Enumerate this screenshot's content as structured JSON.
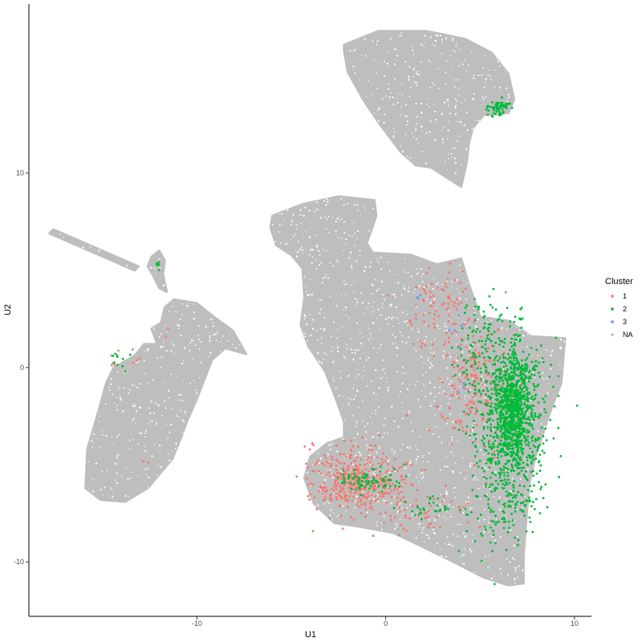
{
  "chart_data": {
    "type": "scatter",
    "title": "",
    "xlabel": "U1",
    "ylabel": "U2",
    "xlim": [
      -18.9,
      10.9
    ],
    "ylim": [
      -12.8,
      18.7
    ],
    "x_ticks": [
      -10,
      0,
      10
    ],
    "y_ticks": [
      -10,
      0,
      10
    ],
    "grid": false,
    "legend_position": "right",
    "legend": {
      "title": "Cluster",
      "entries": [
        {
          "label": "1",
          "color": "#F8766D"
        },
        {
          "label": "2",
          "color": "#00BA38"
        },
        {
          "label": "3",
          "color": "#619CFF"
        },
        {
          "label": "NA",
          "color": "#BEBEBE"
        }
      ]
    },
    "na_regions": [
      {
        "name": "top-island",
        "polygon": [
          [
            -2.2,
            16.6
          ],
          [
            -0.4,
            17.3
          ],
          [
            2.2,
            17.3
          ],
          [
            4.2,
            16.9
          ],
          [
            5.6,
            16.2
          ],
          [
            6.5,
            15.1
          ],
          [
            6.8,
            13.8
          ],
          [
            6.5,
            13.1
          ],
          [
            5.2,
            13.0
          ],
          [
            4.6,
            12.3
          ],
          [
            4.4,
            11.5
          ],
          [
            4.3,
            10.6
          ],
          [
            4.0,
            9.3
          ],
          [
            2.4,
            10.3
          ],
          [
            1.6,
            10.4
          ],
          [
            0.8,
            11.1
          ],
          [
            -0.3,
            12.5
          ],
          [
            -1.2,
            13.8
          ],
          [
            -2.0,
            15.2
          ],
          [
            -2.2,
            16.3
          ]
        ]
      },
      {
        "name": "main-mass",
        "polygon": [
          [
            -6.0,
            7.8
          ],
          [
            -4.4,
            8.4
          ],
          [
            -2.5,
            8.8
          ],
          [
            -0.6,
            8.6
          ],
          [
            -0.5,
            7.8
          ],
          [
            -1.0,
            6.4
          ],
          [
            -0.7,
            5.9
          ],
          [
            1.3,
            5.8
          ],
          [
            2.7,
            5.3
          ],
          [
            4.0,
            5.6
          ],
          [
            4.4,
            4.3
          ],
          [
            4.8,
            3.2
          ],
          [
            5.0,
            2.6
          ],
          [
            6.5,
            2.4
          ],
          [
            7.7,
            1.6
          ],
          [
            9.5,
            1.5
          ],
          [
            9.3,
            -0.8
          ],
          [
            8.7,
            -2.3
          ],
          [
            8.3,
            -3.5
          ],
          [
            7.9,
            -4.7
          ],
          [
            7.6,
            -6.0
          ],
          [
            7.5,
            -7.2
          ],
          [
            7.4,
            -8.4
          ],
          [
            7.3,
            -9.7
          ],
          [
            7.3,
            -11.1
          ],
          [
            6.5,
            -11.2
          ],
          [
            5.2,
            -10.8
          ],
          [
            3.6,
            -10.0
          ],
          [
            1.7,
            -9.1
          ],
          [
            0.4,
            -8.5
          ],
          [
            -1.3,
            -8.2
          ],
          [
            -2.7,
            -8.0
          ],
          [
            -3.8,
            -7.0
          ],
          [
            -4.3,
            -5.7
          ],
          [
            -4.0,
            -4.6
          ],
          [
            -3.1,
            -3.9
          ],
          [
            -2.2,
            -3.6
          ],
          [
            -2.2,
            -2.8
          ],
          [
            -2.6,
            -1.7
          ],
          [
            -3.2,
            -0.2
          ],
          [
            -4.1,
            1.1
          ],
          [
            -4.5,
            2.2
          ],
          [
            -4.3,
            3.6
          ],
          [
            -4.4,
            5.1
          ],
          [
            -5.0,
            5.8
          ],
          [
            -5.8,
            6.3
          ],
          [
            -6.1,
            7.2
          ]
        ]
      },
      {
        "name": "left-island",
        "polygon": [
          [
            -11.2,
            3.5
          ],
          [
            -10.0,
            3.3
          ],
          [
            -9.1,
            2.6
          ],
          [
            -8.1,
            1.9
          ],
          [
            -7.4,
            0.7
          ],
          [
            -8.5,
            1.0
          ],
          [
            -9.2,
            0.4
          ],
          [
            -10.0,
            -1.6
          ],
          [
            -10.5,
            -2.7
          ],
          [
            -10.8,
            -3.5
          ],
          [
            -11.3,
            -4.7
          ],
          [
            -12.6,
            -6.2
          ],
          [
            -13.8,
            -6.9
          ],
          [
            -15.1,
            -6.8
          ],
          [
            -15.9,
            -6.2
          ],
          [
            -15.8,
            -4.2
          ],
          [
            -15.2,
            -2.2
          ],
          [
            -14.8,
            -0.8
          ],
          [
            -14.4,
            0.0
          ],
          [
            -13.3,
            0.6
          ],
          [
            -12.8,
            1.2
          ],
          [
            -12.1,
            1.2
          ],
          [
            -12.4,
            2.0
          ],
          [
            -11.9,
            2.3
          ],
          [
            -11.7,
            3.1
          ]
        ]
      },
      {
        "name": "small-blob",
        "polygon": [
          [
            -12.0,
            6.0
          ],
          [
            -11.7,
            5.5
          ],
          [
            -11.8,
            4.8
          ],
          [
            -11.6,
            3.9
          ],
          [
            -12.0,
            4.1
          ],
          [
            -12.3,
            4.7
          ],
          [
            -12.6,
            5.2
          ],
          [
            -12.4,
            5.7
          ]
        ]
      },
      {
        "name": "tail",
        "polygon": [
          [
            -17.8,
            6.9
          ],
          [
            -13.3,
            5.0
          ],
          [
            -13.1,
            5.2
          ],
          [
            -17.6,
            7.1
          ]
        ]
      }
    ],
    "series": [
      {
        "name": "1",
        "color": "#F8766D",
        "clusters": [
          {
            "cx": -1.4,
            "cy": -5.8,
            "sx": 1.2,
            "sy": 0.85,
            "n": 420
          },
          {
            "cx": 4.6,
            "cy": -0.8,
            "sx": 0.9,
            "sy": 1.7,
            "n": 200
          },
          {
            "cx": 2.6,
            "cy": 2.9,
            "sx": 0.9,
            "sy": 1.1,
            "n": 80
          },
          {
            "cx": 2.5,
            "cy": -7.6,
            "sx": 1.3,
            "sy": 0.6,
            "n": 40
          },
          {
            "cx": -13.9,
            "cy": 0.4,
            "sx": 0.5,
            "sy": 0.25,
            "n": 10
          },
          {
            "cx": -12.7,
            "cy": -4.7,
            "sx": 0.2,
            "sy": 0.2,
            "n": 2
          },
          {
            "cx": -11.5,
            "cy": 1.7,
            "sx": 0.2,
            "sy": 0.2,
            "n": 2
          }
        ]
      },
      {
        "name": "2",
        "color": "#00BA38",
        "clusters": [
          {
            "cx": 6.7,
            "cy": -2.0,
            "sx": 0.5,
            "sy": 1.5,
            "n": 700
          },
          {
            "cx": 6.6,
            "cy": -2.5,
            "sx": 1.0,
            "sy": 2.2,
            "n": 600
          },
          {
            "cx": 6.4,
            "cy": -6.3,
            "sx": 1.0,
            "sy": 1.5,
            "n": 170
          },
          {
            "cx": 4.8,
            "cy": 1.3,
            "sx": 0.6,
            "sy": 1.2,
            "n": 80
          },
          {
            "cx": -0.9,
            "cy": -5.8,
            "sx": 0.8,
            "sy": 0.3,
            "n": 90
          },
          {
            "cx": 2.4,
            "cy": -7.3,
            "sx": 0.9,
            "sy": 0.3,
            "n": 30
          },
          {
            "cx": 6.0,
            "cy": 13.4,
            "sx": 0.3,
            "sy": 0.2,
            "n": 60
          },
          {
            "cx": -14.1,
            "cy": 0.4,
            "sx": 0.3,
            "sy": 0.3,
            "n": 10
          },
          {
            "cx": -12.1,
            "cy": 5.3,
            "sx": 0.15,
            "sy": 0.1,
            "n": 6
          }
        ]
      },
      {
        "name": "3",
        "color": "#619CFF",
        "clusters": [
          {
            "cx": 1.7,
            "cy": 3.7,
            "sx": 0.1,
            "sy": 0.1,
            "n": 3
          },
          {
            "cx": 3.6,
            "cy": 2.2,
            "sx": 0.3,
            "sy": 0.3,
            "n": 4
          },
          {
            "cx": 4.0,
            "cy": -0.9,
            "sx": 0.2,
            "sy": 0.2,
            "n": 3
          }
        ]
      }
    ]
  }
}
